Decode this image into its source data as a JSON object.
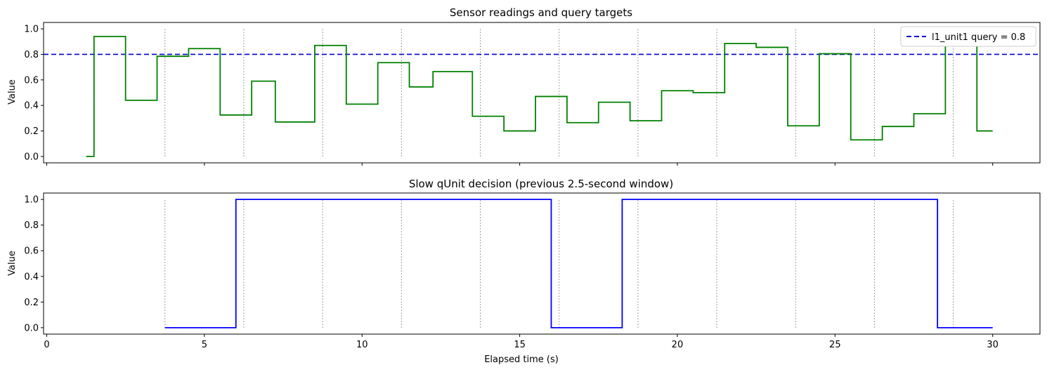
{
  "chart_data": [
    {
      "type": "line",
      "step": "post",
      "title": "Sensor readings and query targets",
      "ylabel": "Value",
      "xlabel": "",
      "xlim": [
        -0.1,
        31.5
      ],
      "ylim": [
        -0.05,
        1.05
      ],
      "xticks": [
        0,
        5,
        10,
        15,
        20,
        25,
        30
      ],
      "xtick_labels_visible": false,
      "yticks": [
        0.0,
        0.2,
        0.4,
        0.6,
        0.8,
        1.0
      ],
      "ytick_labels": [
        "0.0",
        "0.2",
        "0.4",
        "0.6",
        "0.8",
        "1.0"
      ],
      "vlines": [
        3.75,
        6.25,
        8.75,
        11.25,
        13.75,
        16.25,
        18.75,
        21.25,
        23.75,
        26.25,
        28.75
      ],
      "vline_range": [
        0.0,
        1.0
      ],
      "vline_color": "#808080",
      "hline": {
        "y": 0.8,
        "label": "l1_unit1 query = 0.8",
        "color": "#0000cc",
        "style": "dashed"
      },
      "legend": "top-right",
      "series": [
        {
          "color": "#008000",
          "x": [
            1.25,
            1.5,
            2.5,
            3.5,
            4.5,
            5.5,
            6.5,
            7.25,
            8.5,
            9.5,
            10.5,
            11.5,
            12.25,
            13.5,
            14.5,
            15.5,
            16.5,
            17.5,
            18.5,
            19.5,
            20.5,
            21.5,
            22.5,
            23.5,
            24.5,
            25.5,
            26.5,
            27.5,
            28.5,
            29.5,
            30.0
          ],
          "y": [
            0.0,
            0.94,
            0.44,
            0.785,
            0.845,
            0.325,
            0.59,
            0.27,
            0.87,
            0.41,
            0.735,
            0.545,
            0.665,
            0.315,
            0.2,
            0.47,
            0.265,
            0.425,
            0.28,
            0.515,
            0.5,
            0.885,
            0.855,
            0.24,
            0.805,
            0.13,
            0.235,
            0.335,
            0.865,
            0.2,
            0.2
          ]
        }
      ]
    },
    {
      "type": "line",
      "step": "post",
      "title": "Slow qUnit decision (previous 2.5-second window)",
      "ylabel": "Value",
      "xlabel": "Elapsed time (s)",
      "xlim": [
        -0.1,
        31.5
      ],
      "ylim": [
        -0.05,
        1.05
      ],
      "xticks": [
        0,
        5,
        10,
        15,
        20,
        25,
        30
      ],
      "xtick_labels": [
        "0",
        "5",
        "10",
        "15",
        "20",
        "25",
        "30"
      ],
      "xtick_labels_visible": true,
      "yticks": [
        0.0,
        0.2,
        0.4,
        0.6,
        0.8,
        1.0
      ],
      "ytick_labels": [
        "0.0",
        "0.2",
        "0.4",
        "0.6",
        "0.8",
        "1.0"
      ],
      "vlines": [
        3.75,
        6.25,
        8.75,
        11.25,
        13.75,
        16.25,
        18.75,
        21.25,
        23.75,
        26.25,
        28.75
      ],
      "vline_range": [
        0.0,
        1.0
      ],
      "vline_color": "#808080",
      "series": [
        {
          "color": "#0000ff",
          "x": [
            3.75,
            6.0,
            16.0,
            18.25,
            28.25,
            30.0
          ],
          "y": [
            0,
            1,
            0,
            1,
            0,
            0
          ]
        }
      ]
    }
  ]
}
